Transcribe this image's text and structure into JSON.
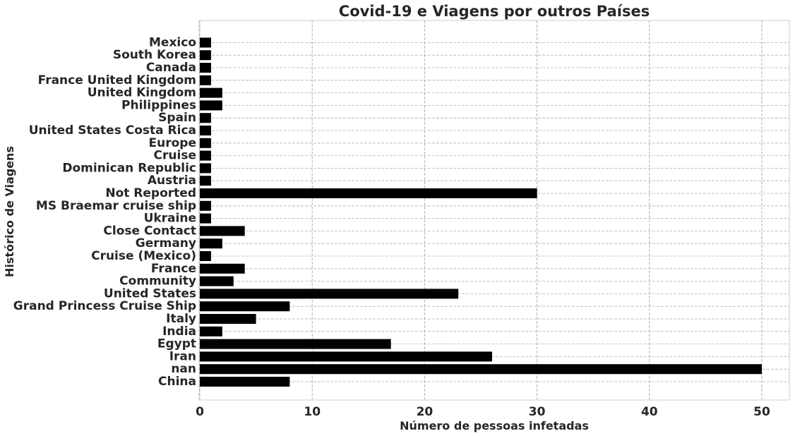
{
  "chart_data": {
    "type": "bar",
    "orientation": "horizontal",
    "title": "Covid-19 e Viagens por outros Países",
    "xlabel": "Número de pessoas infetadas",
    "ylabel": "Histórico de Viagens",
    "xlim": [
      0,
      52.5
    ],
    "xticks": [
      0,
      10,
      20,
      30,
      40,
      50
    ],
    "xtick_labels": [
      "0",
      "10",
      "20",
      "30",
      "40",
      "50"
    ],
    "grid": true,
    "bar_color": "#000000",
    "categories": [
      "China",
      "nan",
      "Iran",
      "Egypt",
      "India",
      "Italy",
      "Grand Princess Cruise Ship",
      "United States",
      "Community",
      "France",
      "Cruise (Mexico)",
      "Germany",
      "Close Contact",
      "Ukraine",
      "MS Braemar cruise ship",
      "Not Reported",
      "Austria",
      "Dominican Republic",
      "Cruise",
      "Europe",
      "United States Costa Rica",
      "Spain",
      "Philippines",
      "United Kingdom",
      "France United Kingdom",
      "Canada",
      "South Korea",
      "Mexico"
    ],
    "values": [
      8,
      50,
      26,
      17,
      2,
      5,
      8,
      23,
      3,
      4,
      1,
      2,
      4,
      1,
      1,
      30,
      1,
      1,
      1,
      1,
      1,
      1,
      2,
      2,
      1,
      1,
      1,
      1
    ]
  }
}
